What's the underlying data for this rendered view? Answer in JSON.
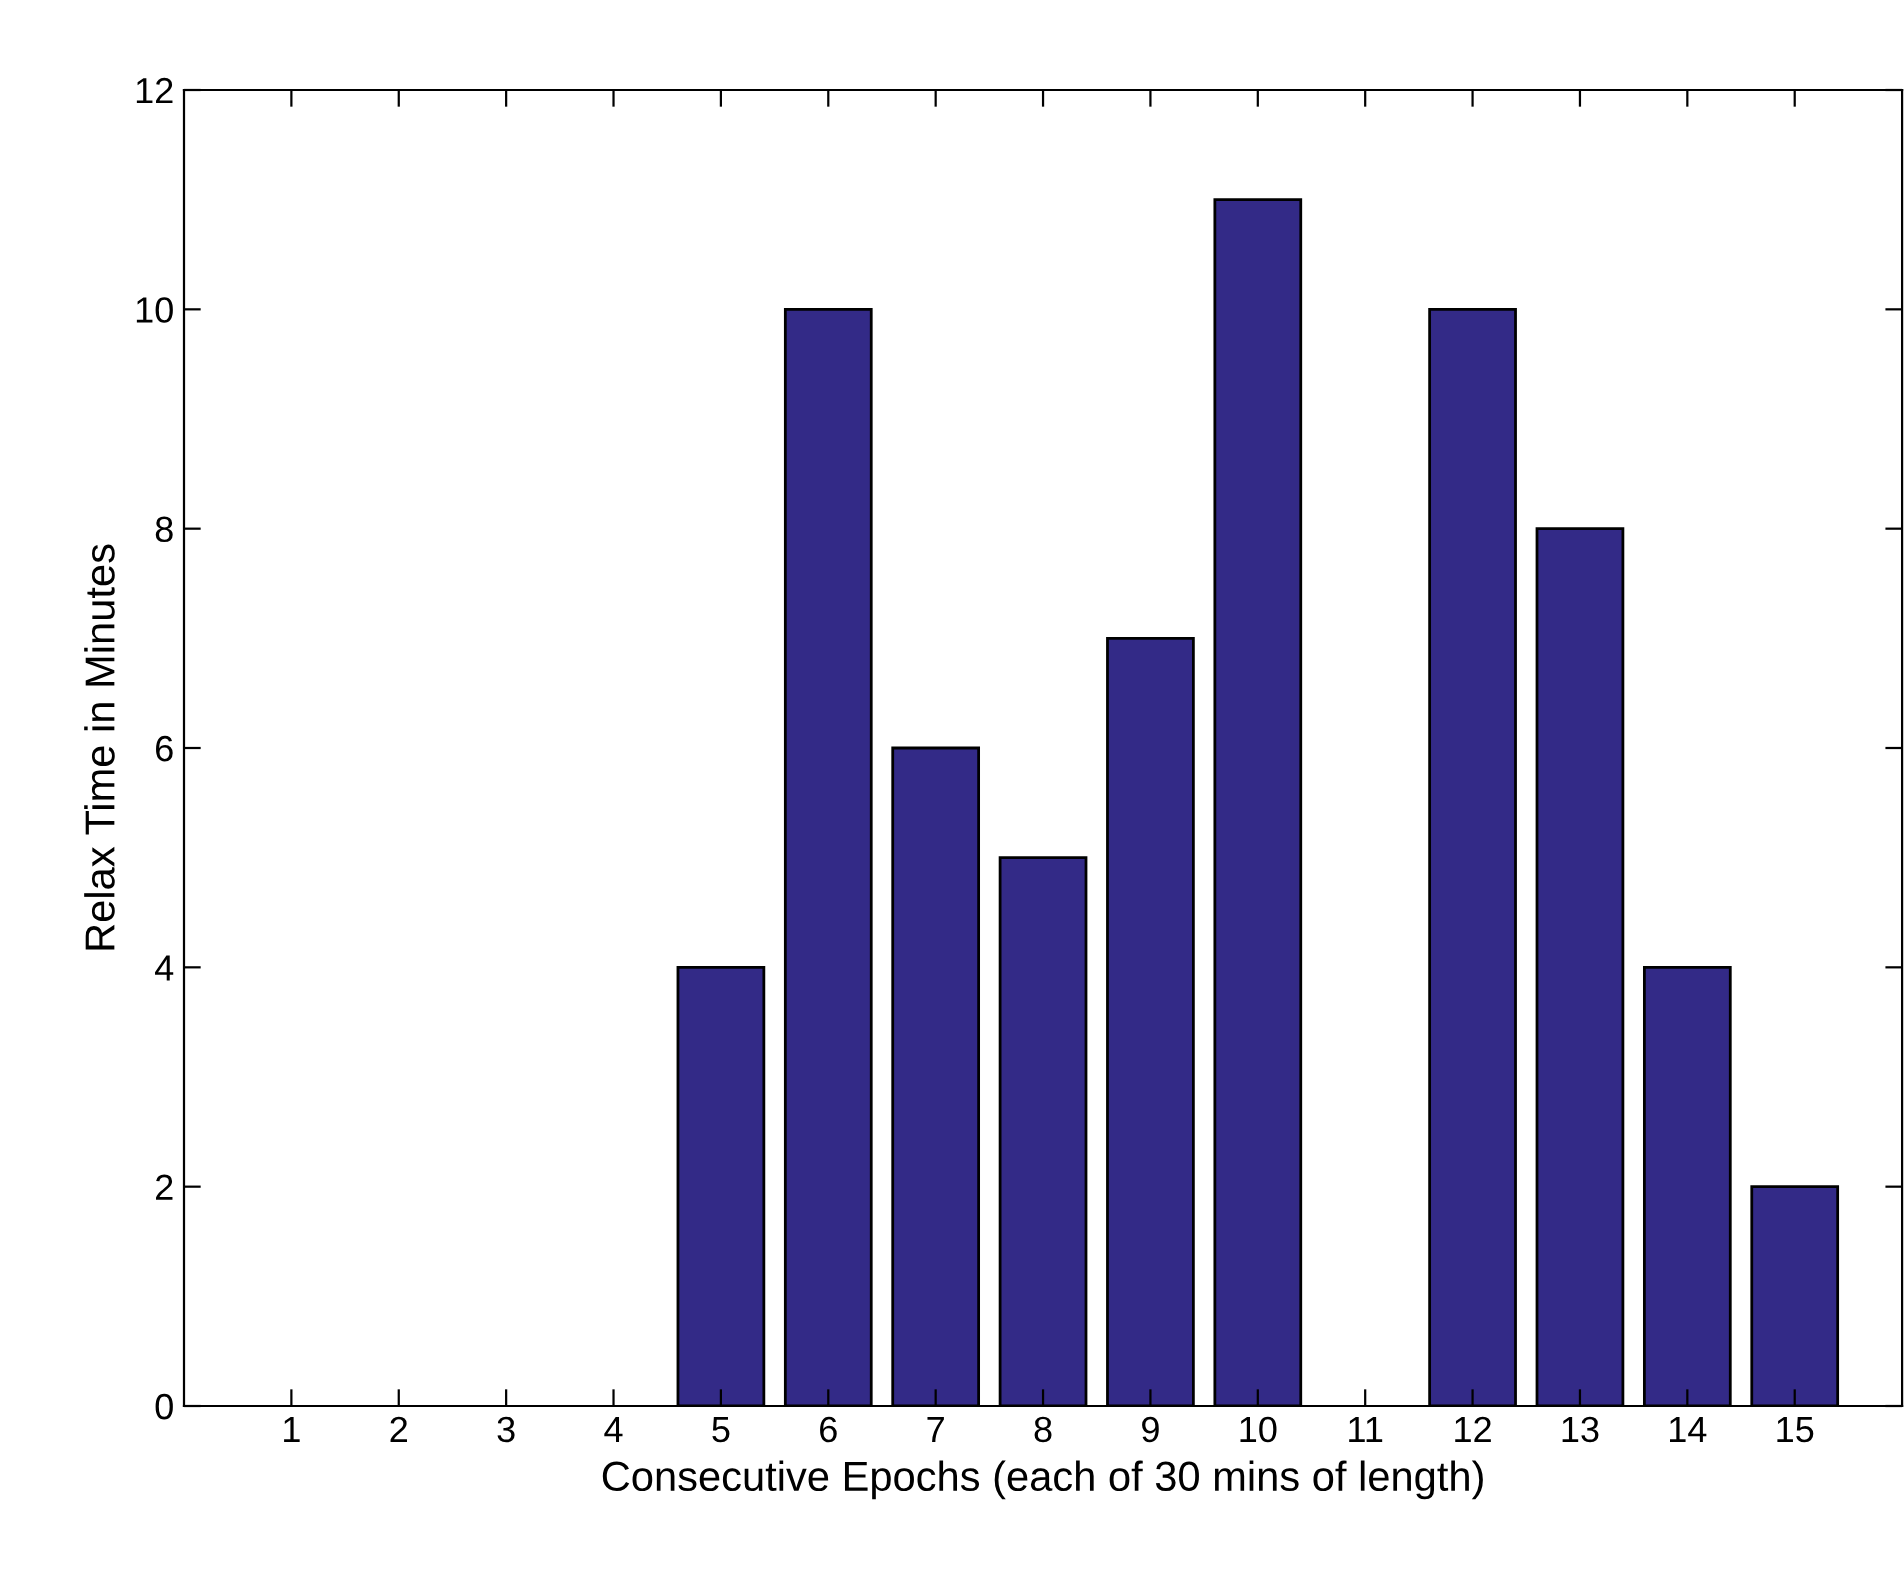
{
  "chart_data": {
    "type": "bar",
    "xlabel": "Consecutive Epochs (each of 30 mins of length)",
    "ylabel": "Relax Time in Minutes",
    "categories": [
      "1",
      "2",
      "3",
      "4",
      "5",
      "6",
      "7",
      "8",
      "9",
      "10",
      "11",
      "12",
      "13",
      "14",
      "15"
    ],
    "values": [
      0,
      0,
      0,
      0,
      4,
      10,
      6,
      5,
      7,
      11,
      0,
      10,
      8,
      4,
      2
    ],
    "color": "#332a87",
    "ylim": [
      0,
      12
    ],
    "yticks": [
      0,
      2,
      4,
      6,
      8,
      10,
      12
    ],
    "grid": false,
    "legend": false
  }
}
